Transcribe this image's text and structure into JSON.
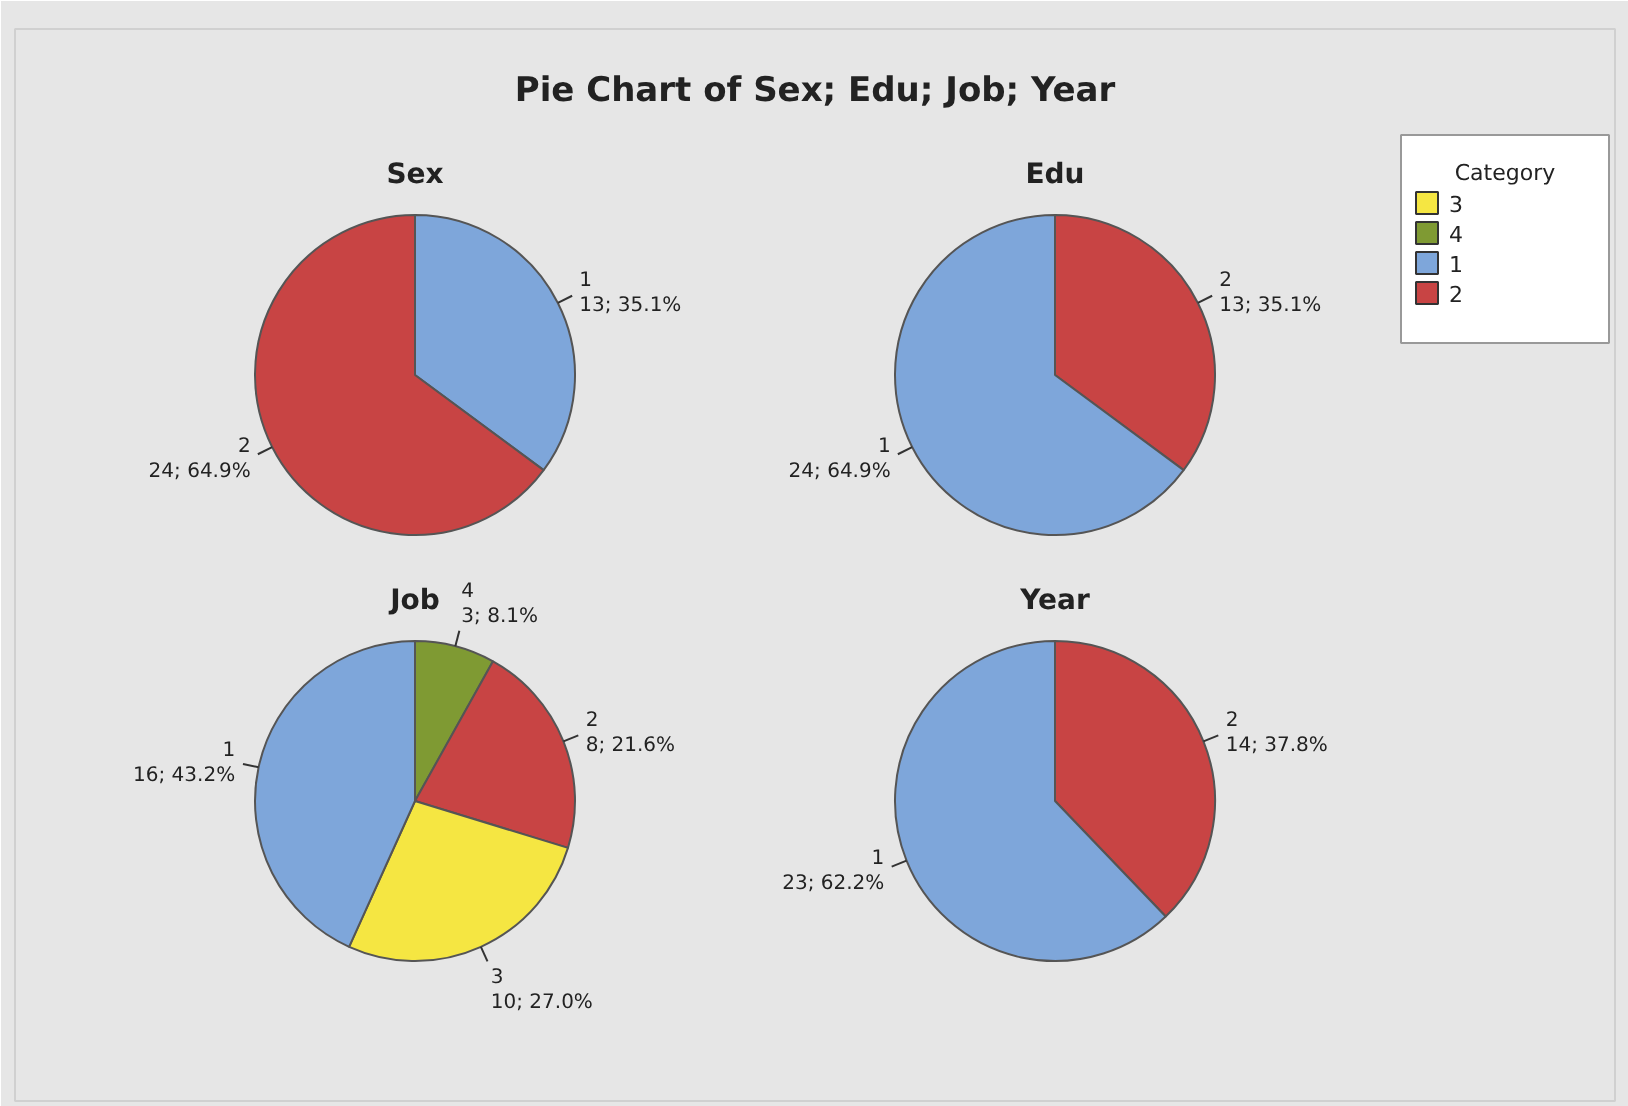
{
  "chart_data": [
    {
      "type": "other",
      "title": "Pie Chart of Sex; Edu; Job; Year",
      "legend_title": "Category",
      "categories": [
        "3",
        "4",
        "1",
        "2"
      ],
      "colors": [
        "#f5e642",
        "#7f9a33",
        "#7ea6da",
        "#c84444"
      ]
    },
    {
      "type": "pie",
      "title": "Sex",
      "legend": "top right",
      "categories": [
        "1",
        "2"
      ],
      "values": [
        13,
        24
      ],
      "colors": [
        "#7ea6da",
        "#c84444"
      ],
      "value_labels": [
        "13; 35.1%",
        "24; 64.9%"
      ]
    },
    {
      "type": "pie",
      "title": "Edu",
      "categories": [
        "2",
        "1"
      ],
      "values": [
        13,
        24
      ],
      "colors": [
        "#c84444",
        "#7ea6da"
      ],
      "value_labels": [
        "13; 35.1%",
        "24; 64.9%"
      ]
    },
    {
      "type": "pie",
      "title": "Job",
      "legend": "top right",
      "categories": [
        "4",
        "2",
        "3",
        "1"
      ],
      "values": [
        3,
        8,
        10,
        16
      ],
      "colors": [
        "#7f9a33",
        "#c84444",
        "#f5e642",
        "#7ea6da"
      ],
      "value_labels": [
        "3; 8.1%",
        "8; 21.6%",
        "10; 27.0%",
        "16; 43.2%"
      ]
    },
    {
      "type": "pie",
      "title": "Year",
      "categories": [
        "2",
        "1"
      ],
      "values": [
        14,
        23
      ],
      "colors": [
        "#c84444",
        "#7ea6da"
      ],
      "value_labels": [
        "14; 37.8%",
        "23; 62.2%"
      ]
    }
  ]
}
